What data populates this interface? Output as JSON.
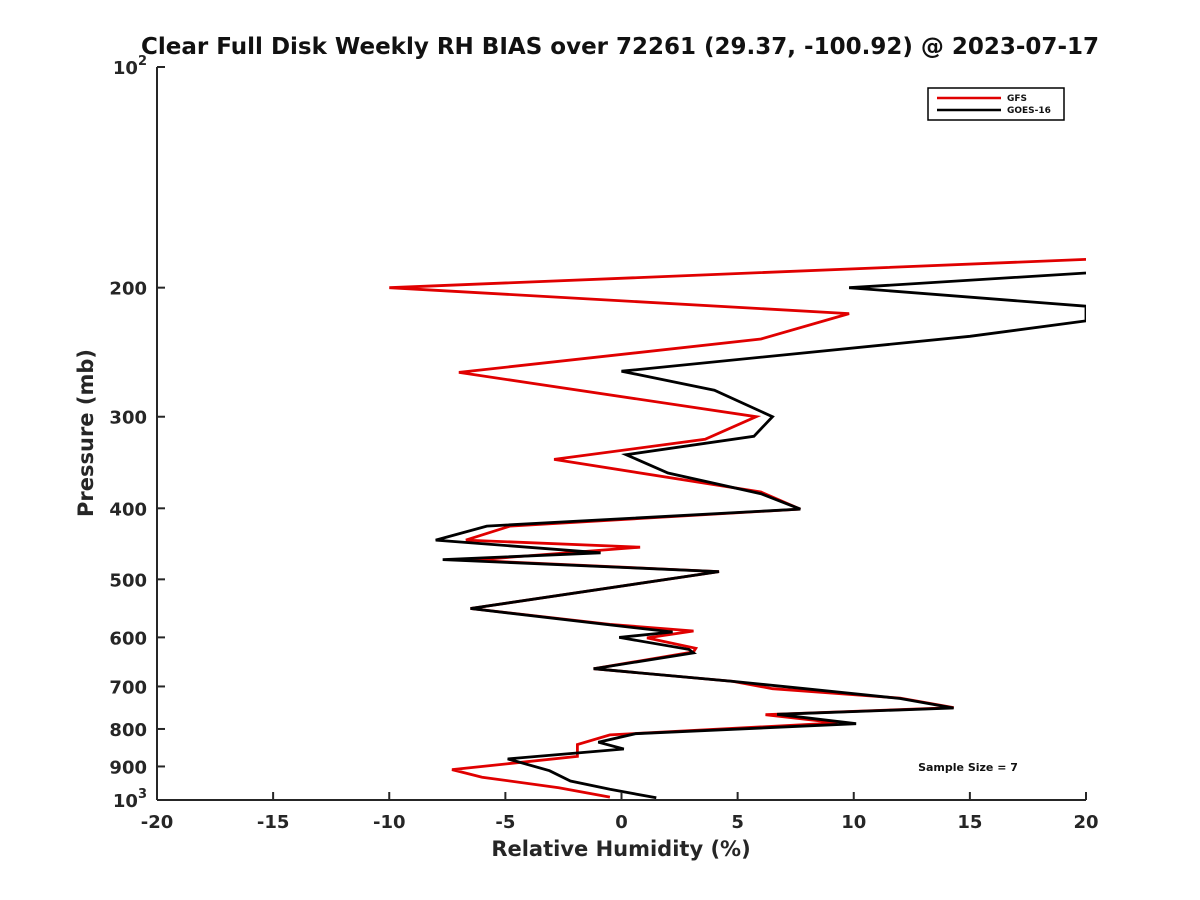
{
  "chart_data": {
    "type": "line",
    "title": "Clear Full Disk Weekly RH BIAS over 72261 (29.37, -100.92) @ 2023-07-17",
    "xlabel": "Relative Humidity (%)",
    "ylabel": "Pressure (mb)",
    "xlim": [
      -20,
      20
    ],
    "ylim": [
      100,
      1000
    ],
    "yscale": "log",
    "y_reversed": true,
    "grid": false,
    "legend_position": "top-right",
    "x_ticks": [
      "-20",
      "-15",
      "-10",
      "-5",
      "0",
      "5",
      "10",
      "15",
      "20"
    ],
    "y_ticks": [
      {
        "value": 100,
        "base": "10",
        "exp": "2"
      },
      {
        "value": 200,
        "label": "200"
      },
      {
        "value": 300,
        "label": "300"
      },
      {
        "value": 400,
        "label": "400"
      },
      {
        "value": 500,
        "label": "500"
      },
      {
        "value": 600,
        "label": "600"
      },
      {
        "value": 700,
        "label": "700"
      },
      {
        "value": 800,
        "label": "800"
      },
      {
        "value": 900,
        "label": "900"
      },
      {
        "value": 1000,
        "base": "10",
        "exp": "3"
      }
    ],
    "annotation": "Sample Size = 7",
    "series": [
      {
        "name": "GFS",
        "color": "#e00000",
        "points": [
          [
            20,
            183
          ],
          [
            -10,
            200
          ],
          [
            9.8,
            217
          ],
          [
            6,
            235
          ],
          [
            -7,
            261
          ],
          [
            5.8,
            300
          ],
          [
            3.6,
            322
          ],
          [
            -2.9,
            343
          ],
          [
            6,
            380
          ],
          [
            7.7,
            401
          ],
          [
            -4.8,
            423
          ],
          [
            -6.7,
            442
          ],
          [
            0.8,
            452
          ],
          [
            -6.5,
            471
          ],
          [
            4.2,
            488
          ],
          [
            -6.5,
            548
          ],
          [
            -0.5,
            576
          ],
          [
            3.1,
            588
          ],
          [
            1.1,
            601
          ],
          [
            3.2,
            621
          ],
          [
            3.1,
            628
          ],
          [
            -1.2,
            662
          ],
          [
            4.8,
            689
          ],
          [
            6.5,
            705
          ],
          [
            12,
            726
          ],
          [
            14.3,
            748
          ],
          [
            6.2,
            765
          ],
          [
            9.3,
            785
          ],
          [
            -0.5,
            815
          ],
          [
            -1.9,
            840
          ],
          [
            -1.9,
            872
          ],
          [
            -7.3,
            909
          ],
          [
            -6,
            931
          ],
          [
            -2.7,
            962
          ],
          [
            -0.5,
            991
          ]
        ]
      },
      {
        "name": "GOES-16",
        "color": "#000000",
        "points": [
          [
            20,
            191
          ],
          [
            9.8,
            200
          ],
          [
            20,
            212
          ],
          [
            20,
            222
          ],
          [
            15,
            233
          ],
          [
            0,
            260
          ],
          [
            4,
            276
          ],
          [
            6.5,
            300
          ],
          [
            5.7,
            319
          ],
          [
            0.2,
            338
          ],
          [
            2,
            358
          ],
          [
            6,
            382
          ],
          [
            7.7,
            401
          ],
          [
            -5.8,
            423
          ],
          [
            -8,
            442
          ],
          [
            -0.9,
            460
          ],
          [
            -7.7,
            470
          ],
          [
            4.2,
            488
          ],
          [
            -6.5,
            548
          ],
          [
            -0.5,
            577
          ],
          [
            2.2,
            590
          ],
          [
            -0.1,
            600
          ],
          [
            2.9,
            623
          ],
          [
            3.1,
            630
          ],
          [
            -1.2,
            662
          ],
          [
            4.8,
            689
          ],
          [
            7.9,
            705
          ],
          [
            12,
            727
          ],
          [
            14.3,
            749
          ],
          [
            6.7,
            764
          ],
          [
            10.1,
            787
          ],
          [
            0.6,
            812
          ],
          [
            -1,
            834
          ],
          [
            0.1,
            852
          ],
          [
            -4.9,
            879
          ],
          [
            -3.1,
            912
          ],
          [
            -2.2,
            942
          ],
          [
            -0.5,
            967
          ],
          [
            1.5,
            993
          ]
        ]
      }
    ]
  }
}
